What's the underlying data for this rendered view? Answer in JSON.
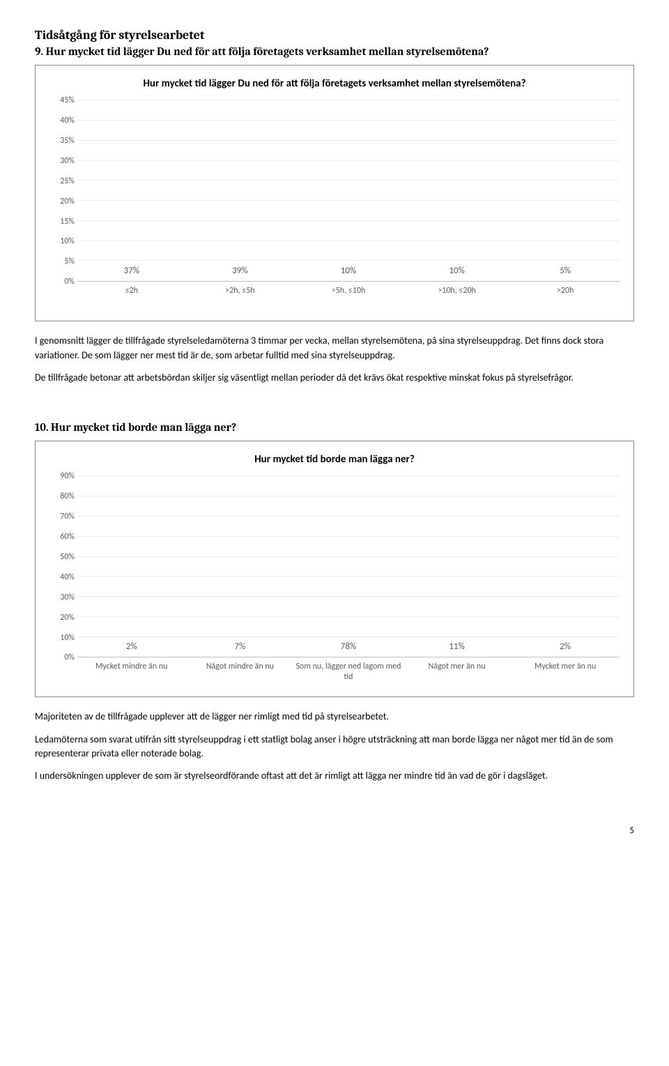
{
  "section_title": "Tidsåtgång för styrelsearbetet",
  "q9": {
    "heading": "9. Hur mycket tid lägger Du ned för att följa företagets verksamhet mellan styrelsemötena?",
    "chart": {
      "title": "Hur mycket tid lägger Du ned för att följa företagets verksamhet mellan styrelsemötena?",
      "type": "bar",
      "ymax": 45,
      "ystep": 5,
      "categories": [
        "≤2h",
        ">2h, ≤5h",
        ">5h, ≤10h",
        ">10h, ≤20h",
        ">20h"
      ],
      "values": [
        37,
        39,
        10,
        10,
        5
      ],
      "bar_color": "#eeece1",
      "grid_color": "#f0ece4",
      "axis_color": "#bfbfbf",
      "label_color": "#595959",
      "bar_width_pct": 62
    },
    "para1": "I genomsnitt lägger de tillfrågade styrelseledamöterna 3 timmar per vecka, mellan styrelsemötena, på sina styrelseuppdrag. Det finns dock stora variationer. De som lägger ner mest tid är de, som arbetar fulltid med sina styrelseuppdrag.",
    "para2": "De tillfrågade betonar att arbetsbördan skiljer sig väsentligt mellan perioder då det krävs ökat respektive minskat fokus på styrelsefrågor."
  },
  "q10": {
    "heading": "10. Hur mycket tid borde man lägga ner?",
    "chart": {
      "title": "Hur mycket tid borde man lägga ner?",
      "type": "bar",
      "ymax": 90,
      "ystep": 10,
      "categories": [
        "Mycket mindre än nu",
        "Något mindre än nu",
        "Som nu, lägger ned lagom med tid",
        "Något mer än nu",
        "Mycket mer än nu"
      ],
      "values": [
        2,
        7,
        78,
        11,
        2
      ],
      "bar_color": "#eeece1",
      "grid_color": "#f0ece4",
      "axis_color": "#bfbfbf",
      "label_color": "#595959",
      "bar_width_pct": 62
    },
    "para1": "Majoriteten av de tillfrågade upplever att de lägger ner rimligt med tid på styrelsearbetet.",
    "para2": "Ledamöterna som svarat utifrån sitt styrelseuppdrag i ett statligt bolag anser i högre utsträckning att man borde lägga ner något mer tid än de som representerar privata eller noterade bolag.",
    "para3": "I undersökningen upplever de som är styrelseordförande oftast att det är rimligt att lägga ner mindre tid än vad de gör i dagsläget."
  },
  "page_number": "5"
}
